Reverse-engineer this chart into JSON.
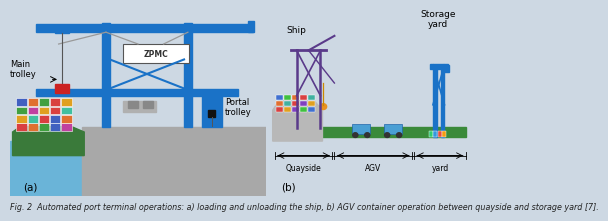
{
  "background_color": "#cdd8e3",
  "caption": "Fig. 2  Automated port terminal operations: a) loading and unloading the ship, b) AGV container operation between quayside and storage yard [7].",
  "caption_fontsize": 5.8,
  "panel_a_label": "(a)",
  "panel_b_label": "(b)",
  "crane_color": "#1a72c7",
  "ship_hull_color": "#3a7a3a",
  "water_color": "#6ab4d8",
  "quay_color": "#a8a8a8",
  "agv_color": "#4a9fd4",
  "road_color": "#3a8a3a",
  "purple_crane_color": "#5a3a8a"
}
